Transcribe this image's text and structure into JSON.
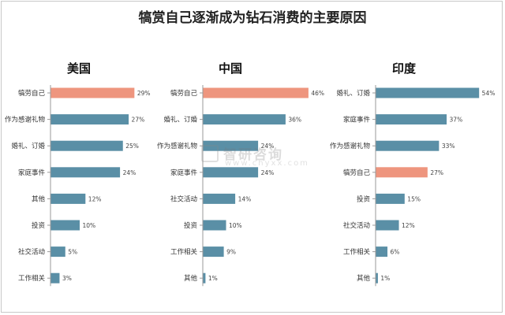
{
  "title": "犒赏自己逐渐成为钻石消费的主要原因",
  "colors": {
    "highlight": "#EE957E",
    "bar": "#5A8FA6",
    "axis": "#9a9a9a"
  },
  "watermark": {
    "text": "智研咨询",
    "url": "www.chyxx.com"
  },
  "chart_data": [
    {
      "type": "bar",
      "title": "美国",
      "highlight": "犒劳自己",
      "categories": [
        "犒劳自己",
        "作为感谢礼物",
        "婚礼、订婚",
        "家庭事件",
        "其他",
        "投资",
        "社交活动",
        "工作相关"
      ],
      "values": [
        29,
        27,
        25,
        24,
        12,
        10,
        5,
        3
      ],
      "unit": "%"
    },
    {
      "type": "bar",
      "title": "中国",
      "highlight": "犒劳自己",
      "categories": [
        "犒劳自己",
        "婚礼、订婚",
        "作为感谢礼物",
        "家庭事件",
        "社交活动",
        "投资",
        "工作相关",
        "其他"
      ],
      "values": [
        46,
        36,
        24,
        24,
        14,
        10,
        9,
        1
      ],
      "unit": "%"
    },
    {
      "type": "bar",
      "title": "印度",
      "highlight": "犒劳自己",
      "categories": [
        "婚礼、订婚",
        "家庭事件",
        "作为感谢礼物",
        "犒劳自己",
        "投资",
        "社交活动",
        "工作相关",
        "其他"
      ],
      "values": [
        54,
        37,
        33,
        27,
        15,
        12,
        6,
        1
      ],
      "unit": "%"
    }
  ]
}
